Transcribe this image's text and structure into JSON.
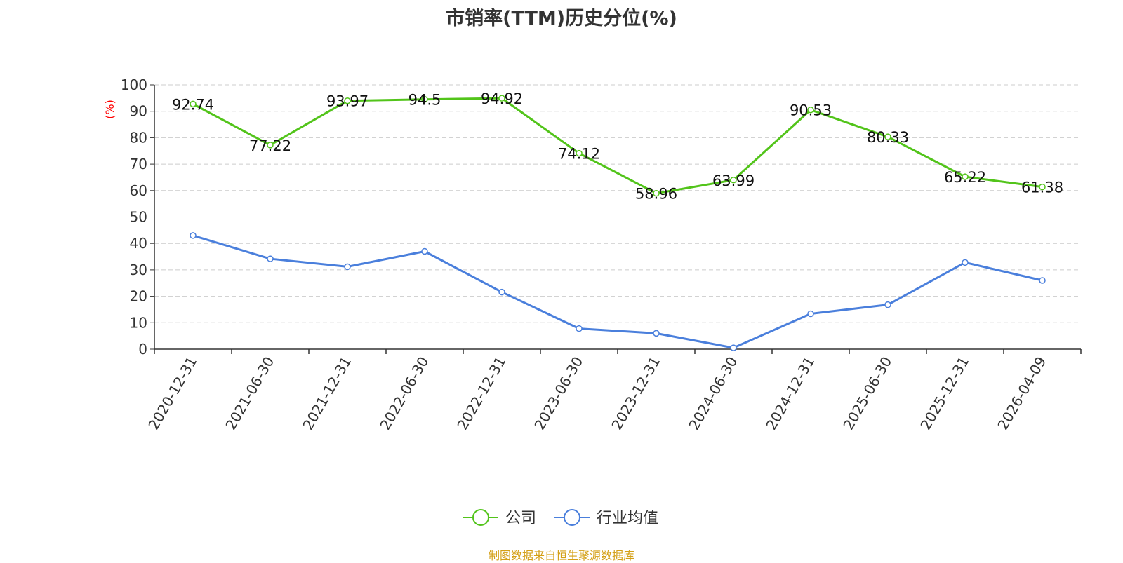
{
  "chart_data": {
    "type": "line",
    "title": "市销率(TTM)历史分位(%)",
    "ylabel": "(%)",
    "xlabel": "",
    "ylim": [
      0,
      100
    ],
    "yticks": [
      0,
      10,
      20,
      30,
      40,
      50,
      60,
      70,
      80,
      90,
      100
    ],
    "grid": true,
    "legend_position": "bottom",
    "categories": [
      "2020-12-31",
      "2021-06-30",
      "2021-12-31",
      "2022-06-30",
      "2022-12-31",
      "2023-06-30",
      "2023-12-31",
      "2024-06-30",
      "2024-12-31",
      "2025-06-30",
      "2025-12-31",
      "2026-04-09"
    ],
    "series": [
      {
        "name": "公司",
        "color": "#52c41a",
        "show_labels": true,
        "values": [
          92.74,
          77.22,
          93.97,
          94.5,
          94.92,
          74.12,
          58.96,
          63.99,
          90.53,
          80.33,
          65.22,
          61.38
        ]
      },
      {
        "name": "行业均值",
        "color": "#4a7fdc",
        "show_labels": false,
        "values": [
          43.0,
          34.2,
          31.2,
          37.0,
          21.6,
          7.8,
          6.0,
          0.5,
          13.4,
          16.8,
          32.8,
          26.0
        ]
      }
    ]
  },
  "source_note": "制图数据来自恒生聚源数据库",
  "colors": {
    "ylabel": "#ff0000",
    "source_note": "#d4a017",
    "grid": "#cccccc",
    "axis": "#333333"
  }
}
